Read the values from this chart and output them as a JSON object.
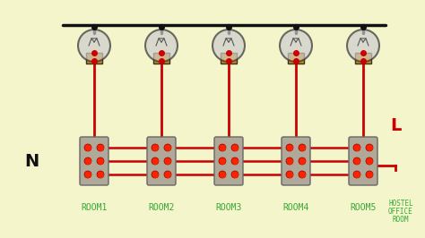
{
  "bg_color": "#f5f5cc",
  "wire_color_black": "#111111",
  "wire_color_red": "#cc0000",
  "switch_body_color": "#b0a898",
  "switch_led_color": "#ff2200",
  "lamp_base_color": "#cc8800",
  "lamp_glass_color": "#cccccc",
  "lamp_glass_alpha": 0.7,
  "label_color": "#33aa33",
  "N_color": "#111111",
  "L_color": "#cc0000",
  "rooms": [
    "ROOM1",
    "ROOM2",
    "ROOM3",
    "ROOM4",
    "ROOM5"
  ],
  "room_label_fontsize": 7,
  "NL_fontsize": 14,
  "hostel_text": [
    "HOSTEL",
    "OFFICE",
    "ROOM"
  ],
  "hostel_fontsize": 5.5
}
